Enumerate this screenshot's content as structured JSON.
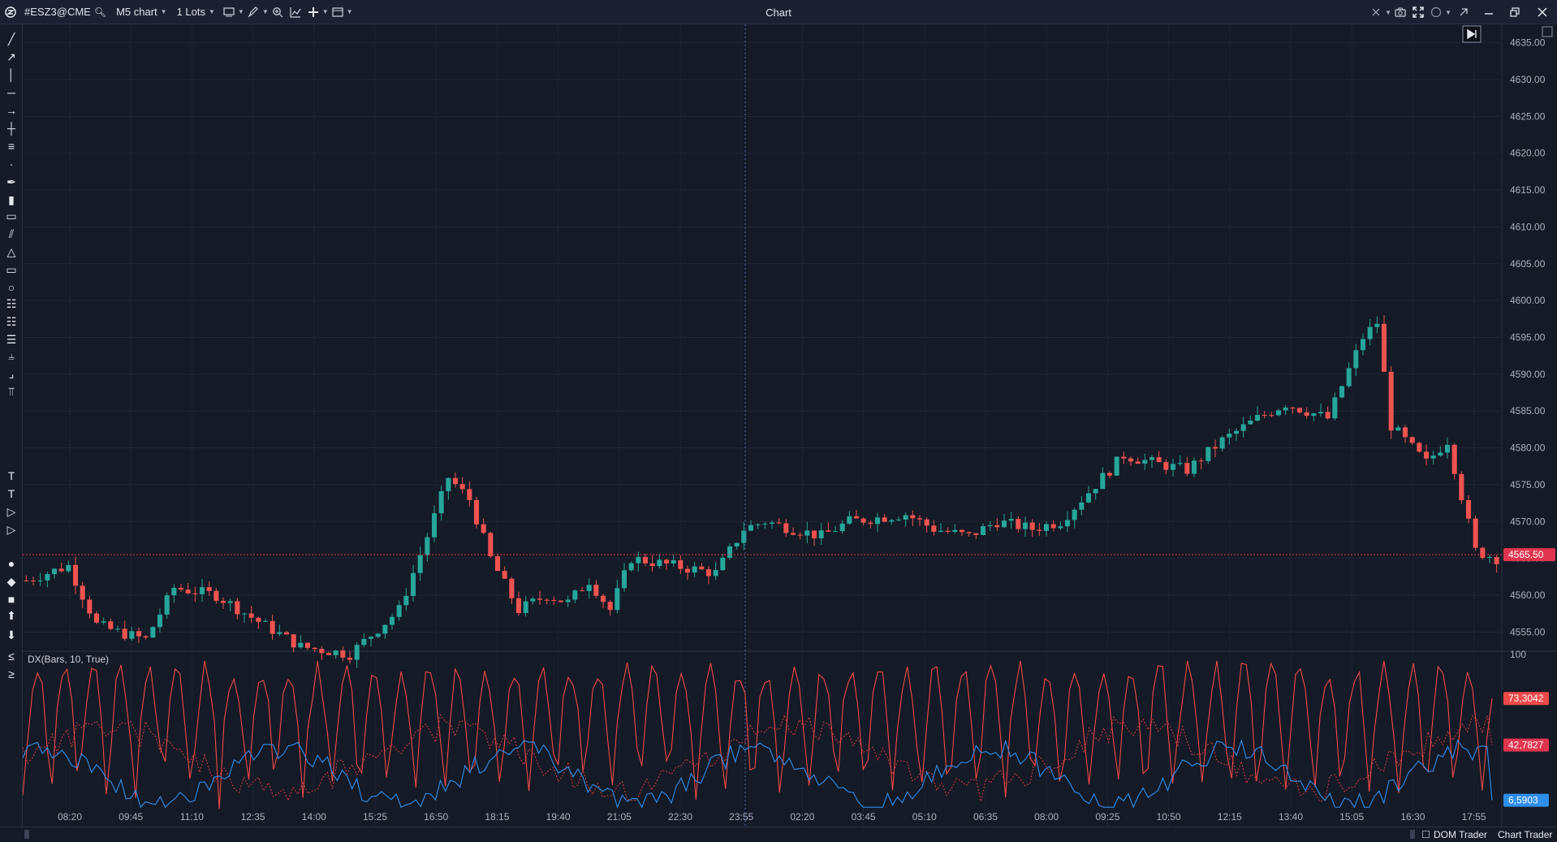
{
  "toolbar": {
    "symbol": "#ESZ3@CME",
    "timeframe": "M5 chart",
    "lots": "1 Lots",
    "window_title": "Chart",
    "icons_left": [
      "app-logo-icon",
      "search-icon",
      "chart-type-icon",
      "pencil-icon",
      "zoom-icon",
      "indicators-icon",
      "crosshair-add-icon",
      "templates-icon"
    ],
    "icons_right": [
      "sync-icon",
      "alert-icon",
      "camera-icon",
      "fullscreen-icon",
      "circle-icon",
      "pin-icon",
      "minimize-icon",
      "maximize-icon",
      "close-icon"
    ]
  },
  "left_tools": [
    "trend-line-icon",
    "ray-icon",
    "vertical-line-icon",
    "horizontal-line-icon",
    "arrow-line-icon",
    "cross-line-icon",
    "parallel-lines-icon",
    "polyline-icon",
    "brush-icon",
    "paint-icon",
    "ruler-icon",
    "channel-icon",
    "triangle-icon",
    "rectangle-icon",
    "ellipse-icon",
    "fib-retracement-icon",
    "fib-extension-icon",
    "fib-fan-icon",
    "pitchfork-icon",
    "gann-icon",
    "andrews-icon",
    "text-style-icon",
    "text-icon",
    "price-label-icon",
    "note-icon",
    "circle-marker-icon",
    "diamond-marker-icon",
    "square-marker-icon",
    "up-arrow-icon",
    "down-arrow-icon",
    "long-position-icon",
    "short-position-icon"
  ],
  "chart_data": [
    {
      "type": "candlestick",
      "title": "",
      "y_axis": {
        "ticks": [
          "4635.00",
          "4630.00",
          "4625.00",
          "4620.00",
          "4615.00",
          "4610.00",
          "4605.00",
          "4600.00",
          "4595.00",
          "4590.00",
          "4585.00",
          "4580.00",
          "4575.00",
          "4570.00",
          "4565.00",
          "4560.00",
          "4555.00"
        ],
        "range": [
          4552.5,
          4637.5
        ]
      },
      "current_price": "4565.50",
      "price_path": [
        [
          0,
          4562
        ],
        [
          6,
          4564
        ],
        [
          10,
          4556
        ],
        [
          13,
          4555
        ],
        [
          17,
          4554
        ],
        [
          21,
          4561
        ],
        [
          27,
          4560
        ],
        [
          32,
          4557
        ],
        [
          39,
          4553
        ],
        [
          46,
          4552
        ],
        [
          53,
          4558
        ],
        [
          57,
          4568
        ],
        [
          60,
          4576
        ],
        [
          63,
          4573
        ],
        [
          66,
          4565
        ],
        [
          70,
          4558
        ],
        [
          74,
          4560
        ],
        [
          77,
          4559
        ],
        [
          80,
          4562
        ],
        [
          83,
          4558
        ],
        [
          86,
          4565
        ],
        [
          92,
          4564
        ],
        [
          98,
          4563
        ],
        [
          102,
          4569
        ],
        [
          105,
          4570
        ],
        [
          113,
          4568
        ],
        [
          117,
          4570
        ],
        [
          125,
          4571
        ],
        [
          129,
          4569
        ],
        [
          134,
          4568
        ],
        [
          138,
          4570
        ],
        [
          143,
          4569
        ],
        [
          147,
          4570
        ],
        [
          152,
          4575
        ],
        [
          156,
          4579
        ],
        [
          160,
          4578
        ],
        [
          165,
          4577
        ],
        [
          170,
          4581
        ],
        [
          175,
          4584
        ],
        [
          179,
          4586
        ],
        [
          185,
          4584
        ],
        [
          190,
          4595
        ],
        [
          192,
          4597
        ],
        [
          194,
          4583
        ],
        [
          199,
          4578
        ],
        [
          202,
          4581
        ],
        [
          206,
          4566
        ],
        [
          209,
          4565
        ]
      ],
      "x_axis": {
        "ticks": [
          "08:20",
          "09:45",
          "11:10",
          "12:35",
          "14:00",
          "15:25",
          "16:50",
          "18:15",
          "19:40",
          "21:05",
          "22:30",
          "23:55",
          "02:20",
          "03:45",
          "05:10",
          "06:35",
          "08:00",
          "09:25",
          "10:50",
          "12:15",
          "13:40",
          "15:05",
          "16:30",
          "17:55"
        ]
      },
      "colors": {
        "up": "#26a69a",
        "down": "#ef5350",
        "price_line": "#e0354f"
      }
    },
    {
      "type": "line",
      "title": "DX(Bars, 10, True)",
      "y_axis": {
        "ticks": [
          "100"
        ],
        "range": [
          0,
          100
        ]
      },
      "series": [
        {
          "last_value": "73,3042",
          "color": "#ef4a4a",
          "style": "solid"
        },
        {
          "last_value": "42,7827",
          "color": "#c8383f",
          "style": "dotted"
        },
        {
          "last_value": "6,5903",
          "color": "#2f8eea",
          "style": "solid"
        }
      ]
    }
  ],
  "bottom": {
    "dom_trader": "DOM Trader",
    "chart_trader": "Chart Trader"
  }
}
